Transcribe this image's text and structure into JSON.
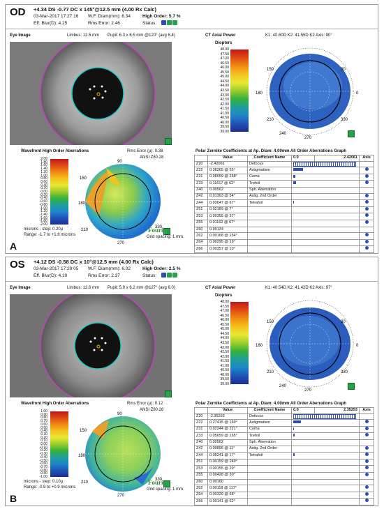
{
  "colors": {
    "accent": "#2d4fb3",
    "pupil_ring": "#22c7c7",
    "limbus_ring": "#c43fbf",
    "logo": "#2e8b2e"
  },
  "panels": [
    {
      "id": "A",
      "eye": "OD",
      "rx": "+4.34 DS -0.77 DC x 145°@12.5 mm (4.00 Rx Calc)",
      "date": "03-Mar-2017 17:27:16",
      "wf_diam": "W.F. Diam(mm): 6.34",
      "high_order": "High Order: 5.7 %",
      "eff_blur": "Eff. Blur(D): 4.25",
      "rms_err": "Rms Error: 2.46",
      "status": "Status:",
      "eye_image": "Eye Image",
      "limbus": "Limbus: 12.5 mm",
      "pupil": "Pupil: 6.3 x 6.5 mm @120° (avg 6.4)",
      "ct_title": "CT Axial Power",
      "diopters": "Diopters",
      "k_values": "K1: 40.60D  K2: 41.55D K2 Axis: 80°",
      "ct_scale": [
        "48.00",
        "47.50",
        "47.00",
        "46.50",
        "46.00",
        "45.50",
        "45.00",
        "44.50",
        "44.00",
        "43.50",
        "43.00",
        "42.50",
        "42.00",
        "41.50",
        "41.00",
        "40.50",
        "40.00",
        "39.50",
        "39.00"
      ],
      "wf_title": "Wavefront High Order Aberrations",
      "wf_rms": "Rms Error (µ): 0.38",
      "ansi": "ANSI Z80.28",
      "wf_scale": [
        "2.00",
        "1.80",
        "1.60",
        "1.40",
        "1.20",
        "1.00",
        "0.80",
        "0.60",
        "0.40",
        "0.20",
        "0.00",
        "-0.20",
        "-0.40",
        "-0.60",
        "-0.80",
        "-1.00",
        "-1.20",
        "-1.40",
        "-1.60",
        "-1.80",
        "-2.00"
      ],
      "microns_step": "microns - step: 0.20µ",
      "range": "Range: -1.7 to +1.8 microns",
      "grid_spacing": "Grid spacing: 1 mm.",
      "fourier": "Fourier",
      "zernike_title": "Polar Zernike Coefficients at Ap. Diam: 4.00mm      All Order Aberrations Graph",
      "table_headers": [
        "",
        "Value",
        "Coefficient Name",
        "0.0",
        "2.42061",
        "Axis"
      ],
      "rows": [
        {
          "z": "Z20",
          "v": "-2.42061",
          "name": "Defocus",
          "bar": 100,
          "hatch": true,
          "dot": false
        },
        {
          "z": "Z22",
          "v": "0.36265 @ 55°",
          "name": "Astigmatism",
          "bar": 15,
          "hatch": false,
          "dot": true
        },
        {
          "z": "Z31",
          "v": "0.08059 @ 268°",
          "name": "Coma",
          "bar": 3,
          "hatch": false,
          "dot": true
        },
        {
          "z": "Z33",
          "v": "0.11617 @ 62°",
          "name": "Trefoil",
          "bar": 4,
          "hatch": false,
          "dot": true
        },
        {
          "z": "Z40",
          "v": "0.00562",
          "name": "Sph. Aberration",
          "bar": 0,
          "hatch": false,
          "dot": false
        },
        {
          "z": "Z42",
          "v": "0.01363 @ 54°",
          "name": "Astig. 2nd Order",
          "bar": 0,
          "hatch": false,
          "dot": true
        },
        {
          "z": "Z44",
          "v": "0.03647 @ 67°",
          "name": "Tetrafoil",
          "bar": 1,
          "hatch": false,
          "dot": true
        },
        {
          "z": "Z51",
          "v": "0.02189 @ 7°",
          "name": "",
          "bar": 0,
          "hatch": false,
          "dot": true
        },
        {
          "z": "Z53",
          "v": "0.00355 @ 37°",
          "name": "",
          "bar": 0,
          "hatch": false,
          "dot": true
        },
        {
          "z": "Z55",
          "v": "0.01162 @ 67°",
          "name": "",
          "bar": 0,
          "hatch": false,
          "dot": true
        },
        {
          "z": "Z60",
          "v": "0.00134",
          "name": "",
          "bar": 0,
          "hatch": false,
          "dot": false
        },
        {
          "z": "Z62",
          "v": "0.00168 @ 154°",
          "name": "",
          "bar": 0,
          "hatch": false,
          "dot": true
        },
        {
          "z": "Z64",
          "v": "0.00295 @ 19°",
          "name": "",
          "bar": 0,
          "hatch": false,
          "dot": true
        },
        {
          "z": "Z66",
          "v": "0.00357 @ 10°",
          "name": "",
          "bar": 0,
          "hatch": false,
          "dot": true
        }
      ]
    },
    {
      "id": "B",
      "eye": "OS",
      "rx": "+4.12 DS -0.58 DC x 10°@12.5 mm (4.00 Rx Calc)",
      "date": "03-Mar-2017 17:29:05",
      "wf_diam": "W.F. Diam(mm): 6.02",
      "high_order": "High Order: 2.5 %",
      "eff_blur": "Eff. Blur(D): 4.10",
      "rms_err": "Rms Error: 2.37",
      "status": "Status:",
      "eye_image": "Eye Image",
      "limbus": "Limbus: 12.6 mm",
      "pupil": "Pupil: 5.9 x 6.2 mm @127° (avg 6.0)",
      "ct_title": "CT Axial Power",
      "diopters": "Diopters",
      "k_values": "K1: 40.54D  K2: 41.42D K2 Axis: 97°",
      "ct_scale": [
        "48.00",
        "47.50",
        "47.00",
        "46.50",
        "46.00",
        "45.50",
        "45.00",
        "44.50",
        "44.00",
        "43.50",
        "43.00",
        "42.50",
        "42.00",
        "41.50",
        "41.00",
        "40.50",
        "40.00",
        "39.50",
        "39.00"
      ],
      "wf_title": "Wavefront High Order Aberrations",
      "wf_rms": "Rms Error (µ): 0.12",
      "ansi": "ANSI Z80.28",
      "wf_scale": [
        "1.00",
        "0.90",
        "0.80",
        "0.70",
        "0.60",
        "0.50",
        "0.40",
        "0.30",
        "0.20",
        "0.10",
        "0.00",
        "-0.10",
        "-0.20",
        "-0.30",
        "-0.40",
        "-0.50",
        "-0.60",
        "-0.70",
        "-0.80",
        "-0.90",
        "-1.00"
      ],
      "microns_step": "microns - step: 0.10µ",
      "range": "Range: -0.9 to +0.9 microns",
      "grid_spacing": "Grid spacing: 1 mm.",
      "fourier": "Fourier",
      "zernike_title": "Polar Zernike Coefficients at Ap. Diam: 4.00mm      All Order Aberrations Graph",
      "table_headers": [
        "",
        "Value",
        "Coefficient Name",
        "0.0",
        "2.35253",
        "Axis"
      ],
      "rows": [
        {
          "z": "Z20",
          "v": "-2.35253",
          "name": "Defocus",
          "bar": 100,
          "hatch": true,
          "dot": false
        },
        {
          "z": "Z22",
          "v": "0.27415 @ 169°",
          "name": "Astigmatism",
          "bar": 12,
          "hatch": false,
          "dot": true
        },
        {
          "z": "Z31",
          "v": "0.02244 @ 221°",
          "name": "Coma",
          "bar": 1,
          "hatch": false,
          "dot": true
        },
        {
          "z": "Z33",
          "v": "0.05659 @ 165°",
          "name": "Trefoil",
          "bar": 2,
          "hatch": false,
          "dot": true
        },
        {
          "z": "Z40",
          "v": "0.00562",
          "name": "Sph. Aberration",
          "bar": 0,
          "hatch": false,
          "dot": false
        },
        {
          "z": "Z42",
          "v": "0.00896 @ 11°",
          "name": "Astig. 2nd Order",
          "bar": 0,
          "hatch": false,
          "dot": true
        },
        {
          "z": "Z44",
          "v": "0.05241 @ 17°",
          "name": "Tetrafoil",
          "bar": 2,
          "hatch": false,
          "dot": true
        },
        {
          "z": "Z51",
          "v": "0.00159 @ 249°",
          "name": "",
          "bar": 0,
          "hatch": false,
          "dot": true
        },
        {
          "z": "Z53",
          "v": "0.00155 @ 29°",
          "name": "",
          "bar": 0,
          "hatch": false,
          "dot": true
        },
        {
          "z": "Z55",
          "v": "0.00428 @ 30°",
          "name": "",
          "bar": 0,
          "hatch": false,
          "dot": true
        },
        {
          "z": "Z60",
          "v": "0.00160",
          "name": "",
          "bar": 0,
          "hatch": false,
          "dot": false
        },
        {
          "z": "Z62",
          "v": "0.00118 @ 117°",
          "name": "",
          "bar": 0,
          "hatch": false,
          "dot": true
        },
        {
          "z": "Z64",
          "v": "0.00329 @ 68°",
          "name": "",
          "bar": 0,
          "hatch": false,
          "dot": true
        },
        {
          "z": "Z66",
          "v": "0.00141 @ 52°",
          "name": "",
          "bar": 0,
          "hatch": false,
          "dot": true
        }
      ]
    }
  ],
  "polar_labels": [
    "90",
    "60",
    "30",
    "0",
    "330",
    "300",
    "270",
    "240",
    "210",
    "180",
    "150",
    "120"
  ]
}
